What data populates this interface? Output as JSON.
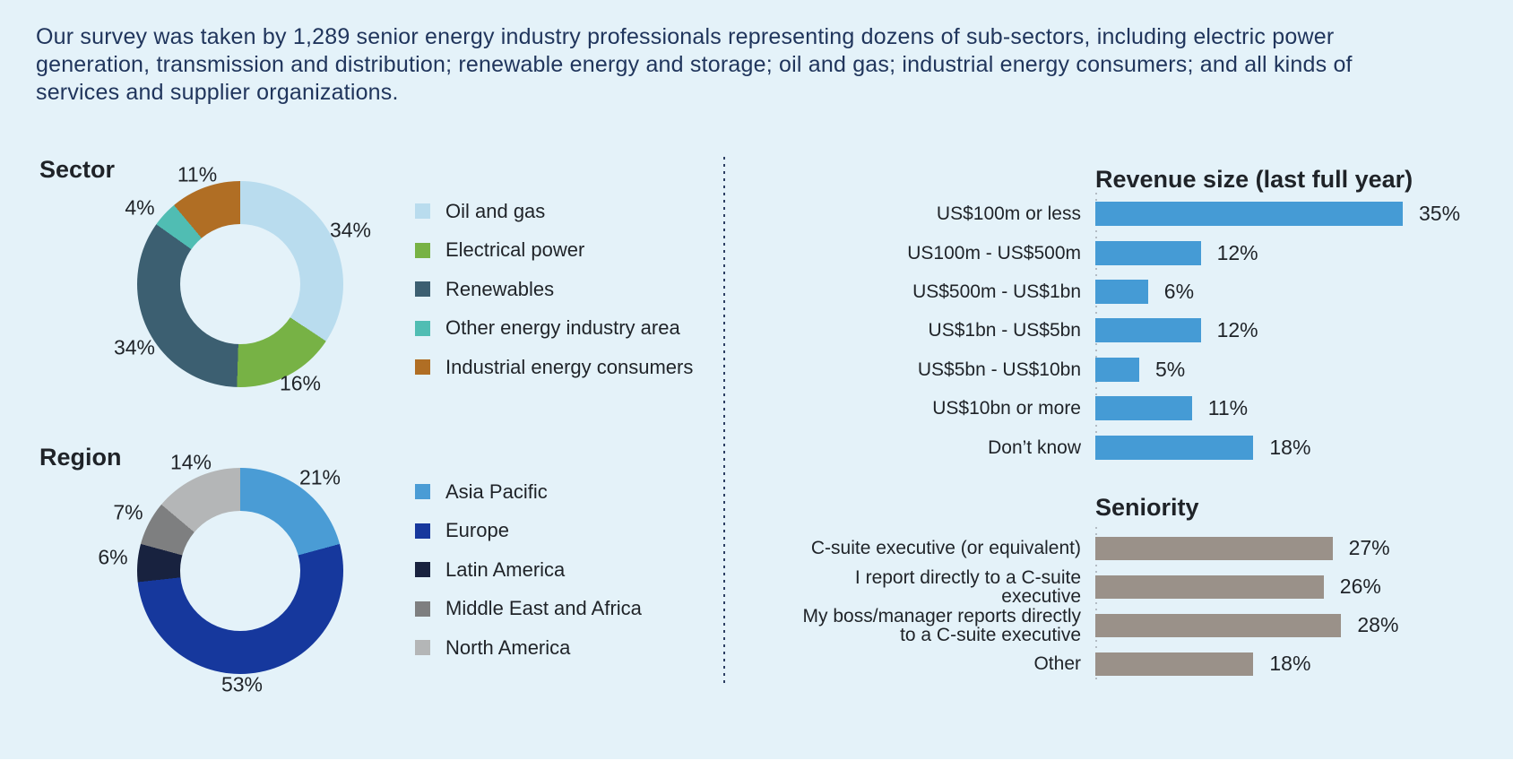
{
  "intro": "Our survey was taken by 1,289 senior energy industry professionals representing dozens of sub-sectors, including electric power generation, transmission and distribution; renewable energy and storage; oil and gas; industrial energy consumers; and all kinds of services and supplier organizations.",
  "page_background": "#e4f2f9",
  "chart_data": [
    {
      "id": "sector",
      "type": "donut",
      "title": "Sector",
      "value_suffix": "%",
      "legend_position": "right",
      "slices": [
        {
          "label": "Oil and gas",
          "value": 34,
          "color": "#b9dcee"
        },
        {
          "label": "Electrical power",
          "value": 16,
          "color": "#77b245"
        },
        {
          "label": "Renewables",
          "value": 34,
          "color": "#3c5f71"
        },
        {
          "label": "Other energy industry area",
          "value": 4,
          "color": "#50bdb3"
        },
        {
          "label": "Industrial energy consumers",
          "value": 11,
          "color": "#b06e24"
        }
      ]
    },
    {
      "id": "region",
      "type": "donut",
      "title": "Region",
      "value_suffix": "%",
      "legend_position": "right",
      "slices": [
        {
          "label": "Asia Pacific",
          "value": 21,
          "color": "#4a9cd5"
        },
        {
          "label": "Europe",
          "value": 53,
          "color": "#16389d"
        },
        {
          "label": "Latin America",
          "value": 6,
          "color": "#18223f"
        },
        {
          "label": "Middle East and Africa",
          "value": 7,
          "color": "#7e7f80"
        },
        {
          "label": "North America",
          "value": 14,
          "color": "#b4b6b7"
        }
      ]
    },
    {
      "id": "revenue",
      "type": "bar",
      "orientation": "horizontal",
      "title": "Revenue size (last full year)",
      "value_suffix": "%",
      "bar_color": "#459bd5",
      "categories": [
        "US$100m or less",
        "US100m - US$500m",
        "US$500m - US$1bn",
        "US$1bn - US$5bn",
        "US$5bn - US$10bn",
        "US$10bn or more",
        "Don’t know"
      ],
      "values": [
        35,
        12,
        6,
        12,
        5,
        11,
        18
      ]
    },
    {
      "id": "seniority",
      "type": "bar",
      "orientation": "horizontal",
      "title": "Seniority",
      "value_suffix": "%",
      "bar_color": "#9a9189",
      "categories": [
        "C-suite executive (or equivalent)",
        "I report directly to a C-suite executive",
        "My boss/manager reports directly\nto a C-suite executive",
        "Other"
      ],
      "values": [
        27,
        26,
        28,
        18
      ]
    }
  ]
}
